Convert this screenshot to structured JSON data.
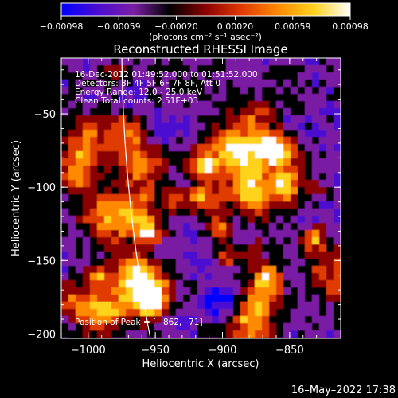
{
  "chart_data": {
    "type": "heatmap",
    "title": "Reconstructed RHESSI Image",
    "xlabel": "Heliocentric X (arcsec)",
    "ylabel": "Heliocentric Y (arcsec)",
    "xlim": [
      -1020,
      -812
    ],
    "ylim": [
      -203,
      -12
    ],
    "x_ticks": [
      -1000,
      -950,
      -900,
      -850
    ],
    "x_tick_labels": [
      "−1000",
      "−950",
      "−900",
      "−850"
    ],
    "y_ticks": [
      -50,
      -100,
      -150,
      -200
    ],
    "y_tick_labels": [
      "−50",
      "−100",
      "−150",
      "−200"
    ],
    "colorbar": {
      "range": [
        -0.00098,
        0.00098
      ],
      "ticks": [
        -0.00098,
        -0.00059,
        -0.0002,
        0.0002,
        0.00059,
        0.00098
      ],
      "tick_labels": [
        "−0.00098",
        "−0.00059",
        "−0.00020",
        "0.00020",
        "0.00059",
        "0.00098"
      ],
      "unit_label": "(photons cm⁻² s⁻¹ asec⁻²)",
      "colors": [
        "#0000ff",
        "#4b0bd0",
        "#7a1fa3",
        "#000000",
        "#8b0000",
        "#e03a00",
        "#ff8a00",
        "#ffd21e",
        "#ffffff"
      ]
    },
    "annotations": [
      "16-Dec-2012 01:49:52.000 to 01:51:52.000",
      "Detectors: 3F 4F 5F 6F 7F 8F, Att 0",
      "Energy Range: 12.0 - 25.0 keV",
      "Clean     Total counts: 2.51E+03"
    ],
    "peak_label": "Position of Peak =  [−862,−71]",
    "peak_position": [
      -862,
      -71
    ],
    "limb": true
  },
  "footer": {
    "timestamp": "16–May–2022 17:38"
  }
}
